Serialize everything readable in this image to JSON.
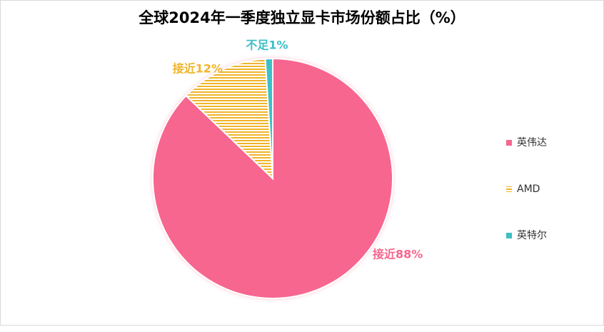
{
  "chart_data": {
    "type": "pie",
    "title": "全球2024年一季度独立显卡市场份额占比（%）",
    "categories": [
      "英伟达",
      "AMD",
      "英特尔"
    ],
    "values": [
      88,
      12,
      1
    ],
    "value_labels": [
      "接近88%",
      "接近12%",
      "不足1%"
    ],
    "colors": [
      "#f7668f",
      "#f0b429",
      "#3dbfc6"
    ],
    "patterns": [
      "solid",
      "horizontal-stripes",
      "solid"
    ],
    "legend": "right"
  }
}
